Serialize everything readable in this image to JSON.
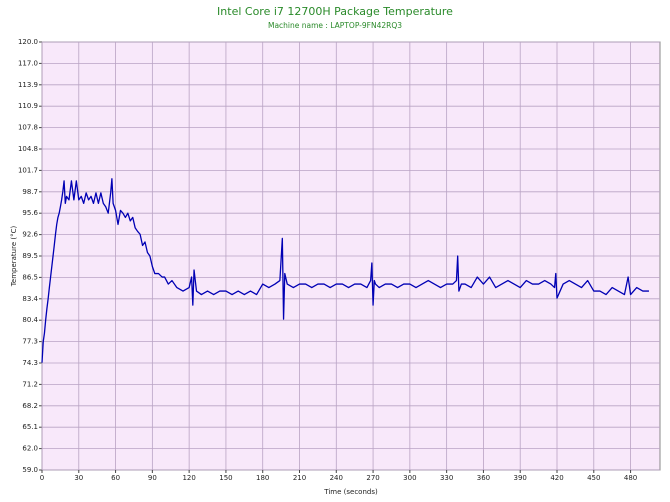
{
  "chart_data": {
    "type": "line",
    "title": "Intel Core i7 12700H Package Temperature",
    "subtitle": "Machine name : LAPTOP-9FN42RQ3",
    "x_label": "Time (seconds)",
    "y_label": "Temperature (°C)",
    "color": "#0000b4",
    "grid": true,
    "xlim": [
      0,
      504
    ],
    "xticks": [
      0,
      30,
      60,
      90,
      120,
      150,
      180,
      210,
      240,
      270,
      300,
      330,
      360,
      390,
      420,
      450,
      480
    ],
    "ylim": [
      59,
      120
    ],
    "yticks": [
      {
        "value": 59,
        "label": "59.0"
      },
      {
        "value": 62.05,
        "label": "62.0"
      },
      {
        "value": 65.1,
        "label": "65.1"
      },
      {
        "value": 68.15,
        "label": "68.2"
      },
      {
        "value": 71.2,
        "label": "71.2"
      },
      {
        "value": 74.25,
        "label": "74.3"
      },
      {
        "value": 77.3,
        "label": "77.3"
      },
      {
        "value": 80.35,
        "label": "80.4"
      },
      {
        "value": 83.4,
        "label": "83.4"
      },
      {
        "value": 86.45,
        "label": "86.5"
      },
      {
        "value": 89.5,
        "label": "89.5"
      },
      {
        "value": 92.55,
        "label": "92.6"
      },
      {
        "value": 95.6,
        "label": "95.6"
      },
      {
        "value": 98.65,
        "label": "98.7"
      },
      {
        "value": 101.7,
        "label": "101.7"
      },
      {
        "value": 104.75,
        "label": "104.8"
      },
      {
        "value": 107.8,
        "label": "107.8"
      },
      {
        "value": 110.85,
        "label": "110.9"
      },
      {
        "value": 113.9,
        "label": "113.9"
      },
      {
        "value": 116.95,
        "label": "117.0"
      },
      {
        "value": 120,
        "label": "120.0"
      }
    ],
    "x": [
      0,
      1,
      2,
      3,
      4,
      5,
      6,
      7,
      8,
      9,
      10,
      11,
      12,
      13,
      14,
      15,
      16,
      17,
      18,
      19,
      20,
      22,
      24,
      26,
      28,
      30,
      32,
      34,
      36,
      38,
      40,
      42,
      44,
      46,
      48,
      50,
      52,
      54,
      56,
      57,
      58,
      60,
      62,
      64,
      66,
      68,
      70,
      72,
      74,
      76,
      78,
      80,
      82,
      84,
      86,
      88,
      90,
      92,
      95,
      98,
      100,
      103,
      106,
      110,
      115,
      120,
      122,
      123,
      124,
      126,
      130,
      135,
      140,
      145,
      150,
      155,
      160,
      165,
      170,
      175,
      180,
      185,
      190,
      194,
      196,
      197,
      198,
      200,
      205,
      210,
      215,
      220,
      225,
      230,
      235,
      240,
      245,
      250,
      255,
      260,
      265,
      268,
      269,
      270,
      271,
      272,
      275,
      280,
      285,
      290,
      295,
      300,
      305,
      310,
      315,
      320,
      325,
      330,
      335,
      338,
      339,
      340,
      342,
      345,
      350,
      355,
      360,
      365,
      370,
      375,
      380,
      385,
      390,
      395,
      400,
      405,
      410,
      415,
      418,
      419,
      420,
      425,
      430,
      435,
      440,
      445,
      450,
      455,
      460,
      465,
      470,
      475,
      478,
      480,
      485,
      490,
      495
    ],
    "values": [
      74.3,
      77.3,
      78.5,
      80.4,
      82,
      83.4,
      85,
      86.5,
      88,
      89.5,
      91,
      92.6,
      94,
      95,
      95.6,
      96.5,
      97.5,
      98.7,
      100.2,
      97,
      98,
      97.5,
      100.2,
      97.5,
      100.2,
      97.5,
      98,
      97,
      98.5,
      97.5,
      98,
      97,
      98.5,
      97,
      98.5,
      97,
      96.5,
      95.6,
      98.5,
      100.5,
      97,
      96,
      94,
      96,
      95.6,
      95,
      95.6,
      94.5,
      95,
      93.5,
      93,
      92.6,
      91,
      91.5,
      90,
      89.5,
      88,
      87,
      87,
      86.5,
      86.5,
      85.5,
      86,
      85,
      84.5,
      85,
      86.5,
      82.5,
      87.5,
      84.5,
      84,
      84.5,
      84,
      84.5,
      84.5,
      84,
      84.5,
      84,
      84.5,
      84,
      85.5,
      85,
      85.5,
      86,
      92,
      80.5,
      87,
      85.5,
      85,
      85.5,
      85.5,
      85,
      85.5,
      85.5,
      85,
      85.5,
      85.5,
      85,
      85.5,
      85.5,
      85,
      86,
      88.5,
      82.5,
      86,
      85.5,
      85,
      85.5,
      85.5,
      85,
      85.5,
      85.5,
      85,
      85.5,
      86,
      85.5,
      85,
      85.5,
      85.5,
      86,
      89.5,
      84.5,
      85.5,
      85.5,
      85,
      86.5,
      85.5,
      86.5,
      85,
      85.5,
      86,
      85.5,
      85,
      86,
      85.5,
      85.5,
      86,
      85.5,
      85,
      87,
      83.5,
      85.5,
      86,
      85.5,
      85,
      86,
      84.5,
      84.5,
      84,
      85,
      84.5,
      84,
      86.5,
      84,
      85,
      84.5,
      84.5
    ]
  }
}
